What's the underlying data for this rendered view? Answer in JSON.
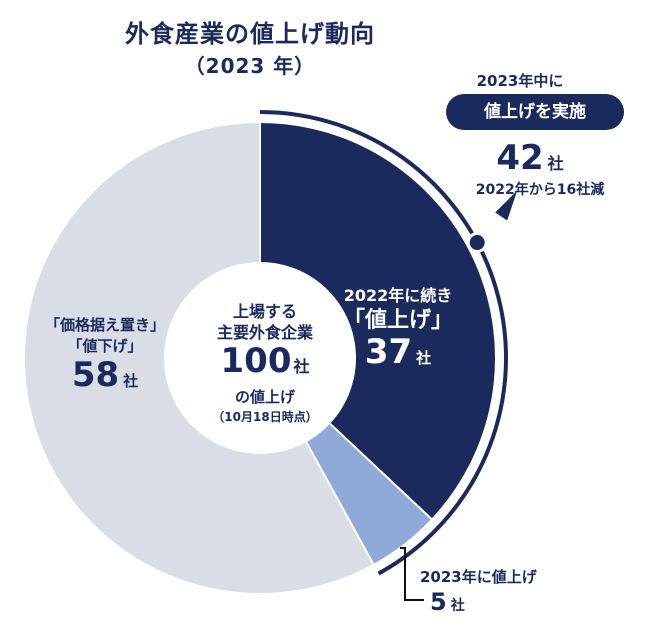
{
  "title": "外食産業の値上げ動向",
  "subtitle": "（2023 年）",
  "colors": {
    "navy": "#1a2a5c",
    "light_blue": "#8fa9d9",
    "light_gray": "#d8dde6",
    "white": "#ffffff"
  },
  "center": {
    "line1": "上場する",
    "line2": "主要外食企業",
    "count": "100",
    "count_unit": "社",
    "line3": "の値上げ",
    "line4": "（10月18日時点）"
  },
  "callout": {
    "head": "2023年中に",
    "pill": "値上げを実施",
    "count": "42",
    "count_unit": "社",
    "sub": "2022年から16社減"
  },
  "segment_labels": {
    "navy_note": "2022年に続き",
    "navy_tag": "「値上げ」",
    "navy_count": "37",
    "navy_unit": "社",
    "blue_head": "2023年に値上げ",
    "blue_count": "5",
    "blue_unit": "社",
    "gray_tag1": "「価格据え置き」",
    "gray_tag2": "「値下げ」",
    "gray_count": "58",
    "gray_unit": "社"
  },
  "chart_data": {
    "type": "pie",
    "title": "外食産業の値上げ動向",
    "subtitle": "（2023 年）",
    "total": 100,
    "unit": "社",
    "slices": [
      {
        "label": "2022年に続き「値上げ」",
        "value": 37,
        "color": "#1a2a5c"
      },
      {
        "label": "2023年に値上げ",
        "value": 5,
        "color": "#8fa9d9"
      },
      {
        "label": "「価格据え置き」「値下げ」",
        "value": 58,
        "color": "#d8dde6"
      }
    ],
    "highlight_group": {
      "label": "2023年中に値上げを実施",
      "value": 42,
      "note": "2022年から16社減"
    }
  }
}
